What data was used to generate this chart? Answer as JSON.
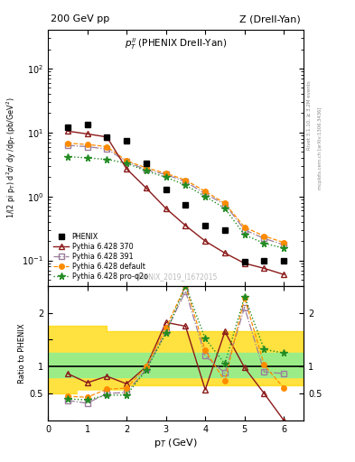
{
  "title_left": "200 GeV pp",
  "title_right": "Z (Drell-Yan)",
  "plot_title": "p$_T^{ll}$ (PHENIX Drell-Yan)",
  "watermark": "PHENIX_2019_I1672015",
  "rivet_label": "Rivet 3.1.10, ≥ 3.2M events",
  "mcplots_label": "mcplots.cern.ch [arXiv:1306.3436]",
  "xlabel": "p$_T$ (GeV)",
  "ylabel": "1/(2 pi p$_T$) d$^2$σ/ dy /dp$_T$ (pb/GeV$^2$)",
  "ratio_ylabel": "Ratio to PHENIX",
  "phenix_pt": [
    0.5,
    1.0,
    1.5,
    2.0,
    2.5,
    3.0,
    3.5,
    4.0,
    4.5,
    5.0,
    5.5,
    6.0
  ],
  "phenix_y": [
    12.0,
    13.5,
    8.5,
    7.5,
    3.3,
    1.3,
    0.75,
    0.35,
    0.3,
    0.095,
    0.1,
    0.1
  ],
  "py370_pt": [
    0.5,
    1.0,
    1.5,
    2.0,
    2.5,
    3.0,
    3.5,
    4.0,
    4.5,
    5.0,
    5.5,
    6.0
  ],
  "py370_y": [
    10.5,
    9.5,
    8.5,
    2.7,
    1.35,
    0.65,
    0.35,
    0.2,
    0.13,
    0.09,
    0.075,
    0.06
  ],
  "py391_pt": [
    0.5,
    1.0,
    1.5,
    2.0,
    2.5,
    3.0,
    3.5,
    4.0,
    4.5,
    5.0,
    5.5,
    6.0
  ],
  "py391_y": [
    6.3,
    6.0,
    5.5,
    3.5,
    2.6,
    2.2,
    1.7,
    1.1,
    0.75,
    0.3,
    0.22,
    0.175
  ],
  "pydef_pt": [
    0.5,
    1.0,
    1.5,
    2.0,
    2.5,
    3.0,
    3.5,
    4.0,
    4.5,
    5.0,
    5.5,
    6.0
  ],
  "pydef_y": [
    6.8,
    6.5,
    6.0,
    3.6,
    2.8,
    2.3,
    1.8,
    1.2,
    0.78,
    0.33,
    0.24,
    0.19
  ],
  "pyq2o_pt": [
    0.5,
    1.0,
    1.5,
    2.0,
    2.5,
    3.0,
    3.5,
    4.0,
    4.5,
    5.0,
    5.5,
    6.0
  ],
  "pyq2o_y": [
    4.2,
    4.0,
    3.8,
    3.3,
    2.5,
    2.0,
    1.5,
    1.0,
    0.65,
    0.25,
    0.185,
    0.155
  ],
  "ratio_py370": [
    0.87,
    0.7,
    0.82,
    0.68,
    1.0,
    1.82,
    1.75,
    0.57,
    1.65,
    0.98,
    0.5,
    0.0
  ],
  "ratio_py391": [
    0.37,
    0.32,
    0.5,
    0.52,
    0.95,
    1.65,
    2.4,
    1.2,
    0.88,
    2.1,
    0.9,
    0.87
  ],
  "ratio_pydef": [
    0.45,
    0.43,
    0.58,
    0.6,
    1.0,
    1.72,
    2.5,
    1.3,
    0.73,
    2.28,
    1.03,
    0.6
  ],
  "ratio_pyq2o": [
    0.4,
    0.38,
    0.47,
    0.47,
    0.94,
    1.62,
    2.5,
    1.52,
    1.05,
    2.3,
    1.32,
    1.25
  ],
  "band_edges": [
    0.0,
    0.5,
    1.0,
    1.5,
    2.0,
    2.5,
    3.0,
    3.5,
    4.0,
    4.5,
    5.0,
    5.5,
    6.5
  ],
  "band_yellow_lo": [
    0.5,
    0.5,
    0.5,
    0.5,
    0.65,
    0.65,
    0.65,
    0.65,
    0.65,
    0.65,
    0.65,
    0.65
  ],
  "band_yellow_hi": [
    1.75,
    1.75,
    1.75,
    1.65,
    1.65,
    1.65,
    1.65,
    1.65,
    1.65,
    1.65,
    1.65,
    1.65
  ],
  "band_green_lo": [
    0.8,
    0.8,
    0.8,
    0.8,
    0.8,
    0.8,
    0.8,
    0.8,
    0.8,
    0.8,
    0.8,
    0.8
  ],
  "band_green_hi": [
    1.25,
    1.25,
    1.25,
    1.25,
    1.25,
    1.25,
    1.25,
    1.25,
    1.25,
    1.25,
    1.25,
    1.25
  ],
  "color_py370": "#8B1A1A",
  "color_py391": "#9B7D9B",
  "color_pydef": "#FF8C00",
  "color_pyq2o": "#228B22",
  "ylim_main": [
    0.04,
    400
  ],
  "xlim": [
    0,
    6.5
  ]
}
